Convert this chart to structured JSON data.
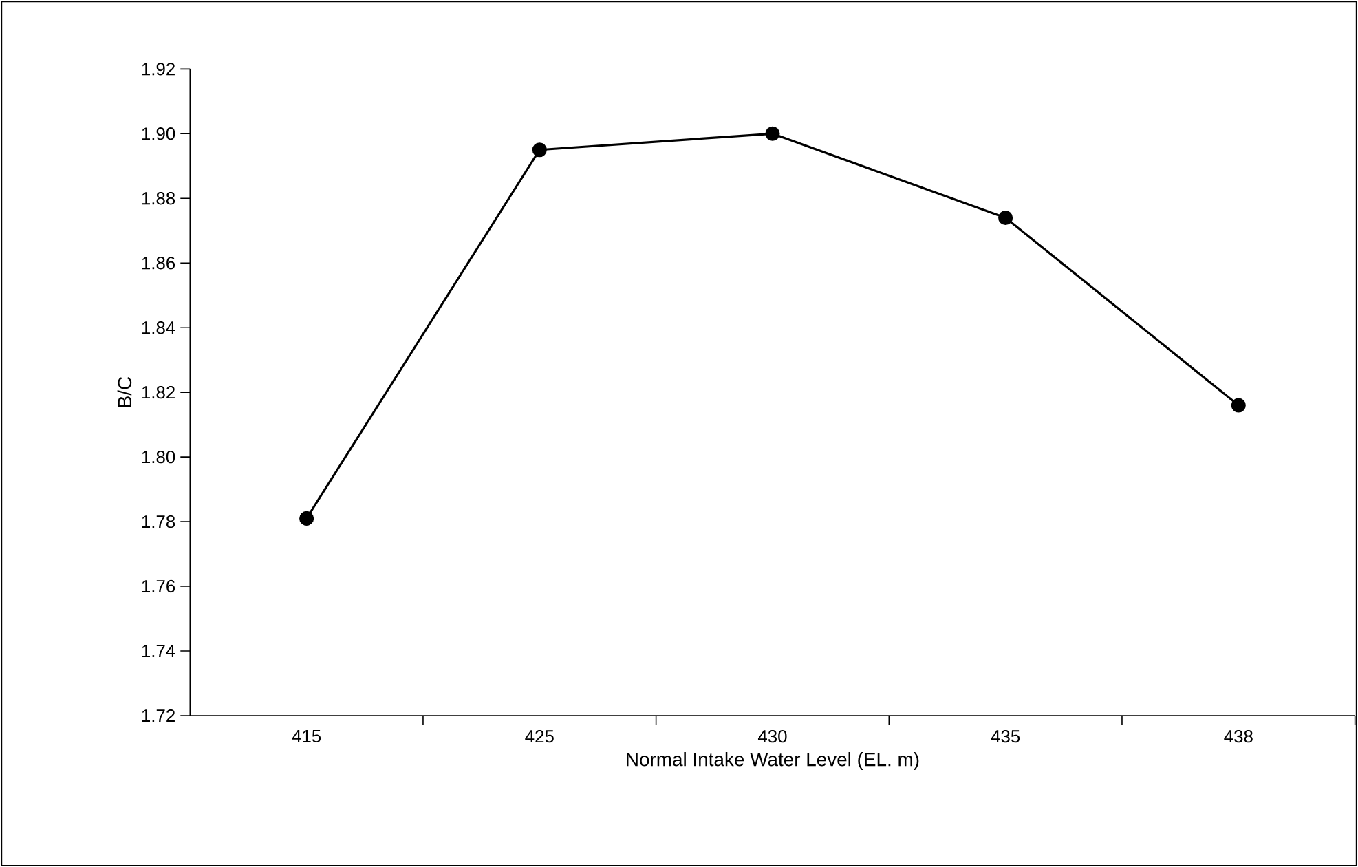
{
  "chart_data": {
    "type": "line",
    "xlabel": "Normal Intake Water Level (EL. m)",
    "ylabel": "B/C",
    "categories": [
      "415",
      "425",
      "430",
      "435",
      "438"
    ],
    "series": [
      {
        "color": "#000000",
        "values": [
          1.781,
          1.895,
          1.9,
          1.874,
          1.816
        ]
      }
    ],
    "ylim": [
      1.72,
      1.92
    ],
    "yticks": [
      {
        "value": 1.72,
        "label": "1.72"
      },
      {
        "value": 1.74,
        "label": "1.74"
      },
      {
        "value": 1.76,
        "label": "1.76"
      },
      {
        "value": 1.78,
        "label": "1.78"
      },
      {
        "value": 1.8,
        "label": "1.80"
      },
      {
        "value": 1.82,
        "label": "1.82"
      },
      {
        "value": 1.84,
        "label": "1.84"
      },
      {
        "value": 1.86,
        "label": "1.86"
      },
      {
        "value": 1.88,
        "label": "1.88"
      },
      {
        "value": 1.9,
        "label": "1.90"
      },
      {
        "value": 1.92,
        "label": "1.92"
      }
    ],
    "marker": "circle",
    "line_style": "solid"
  }
}
